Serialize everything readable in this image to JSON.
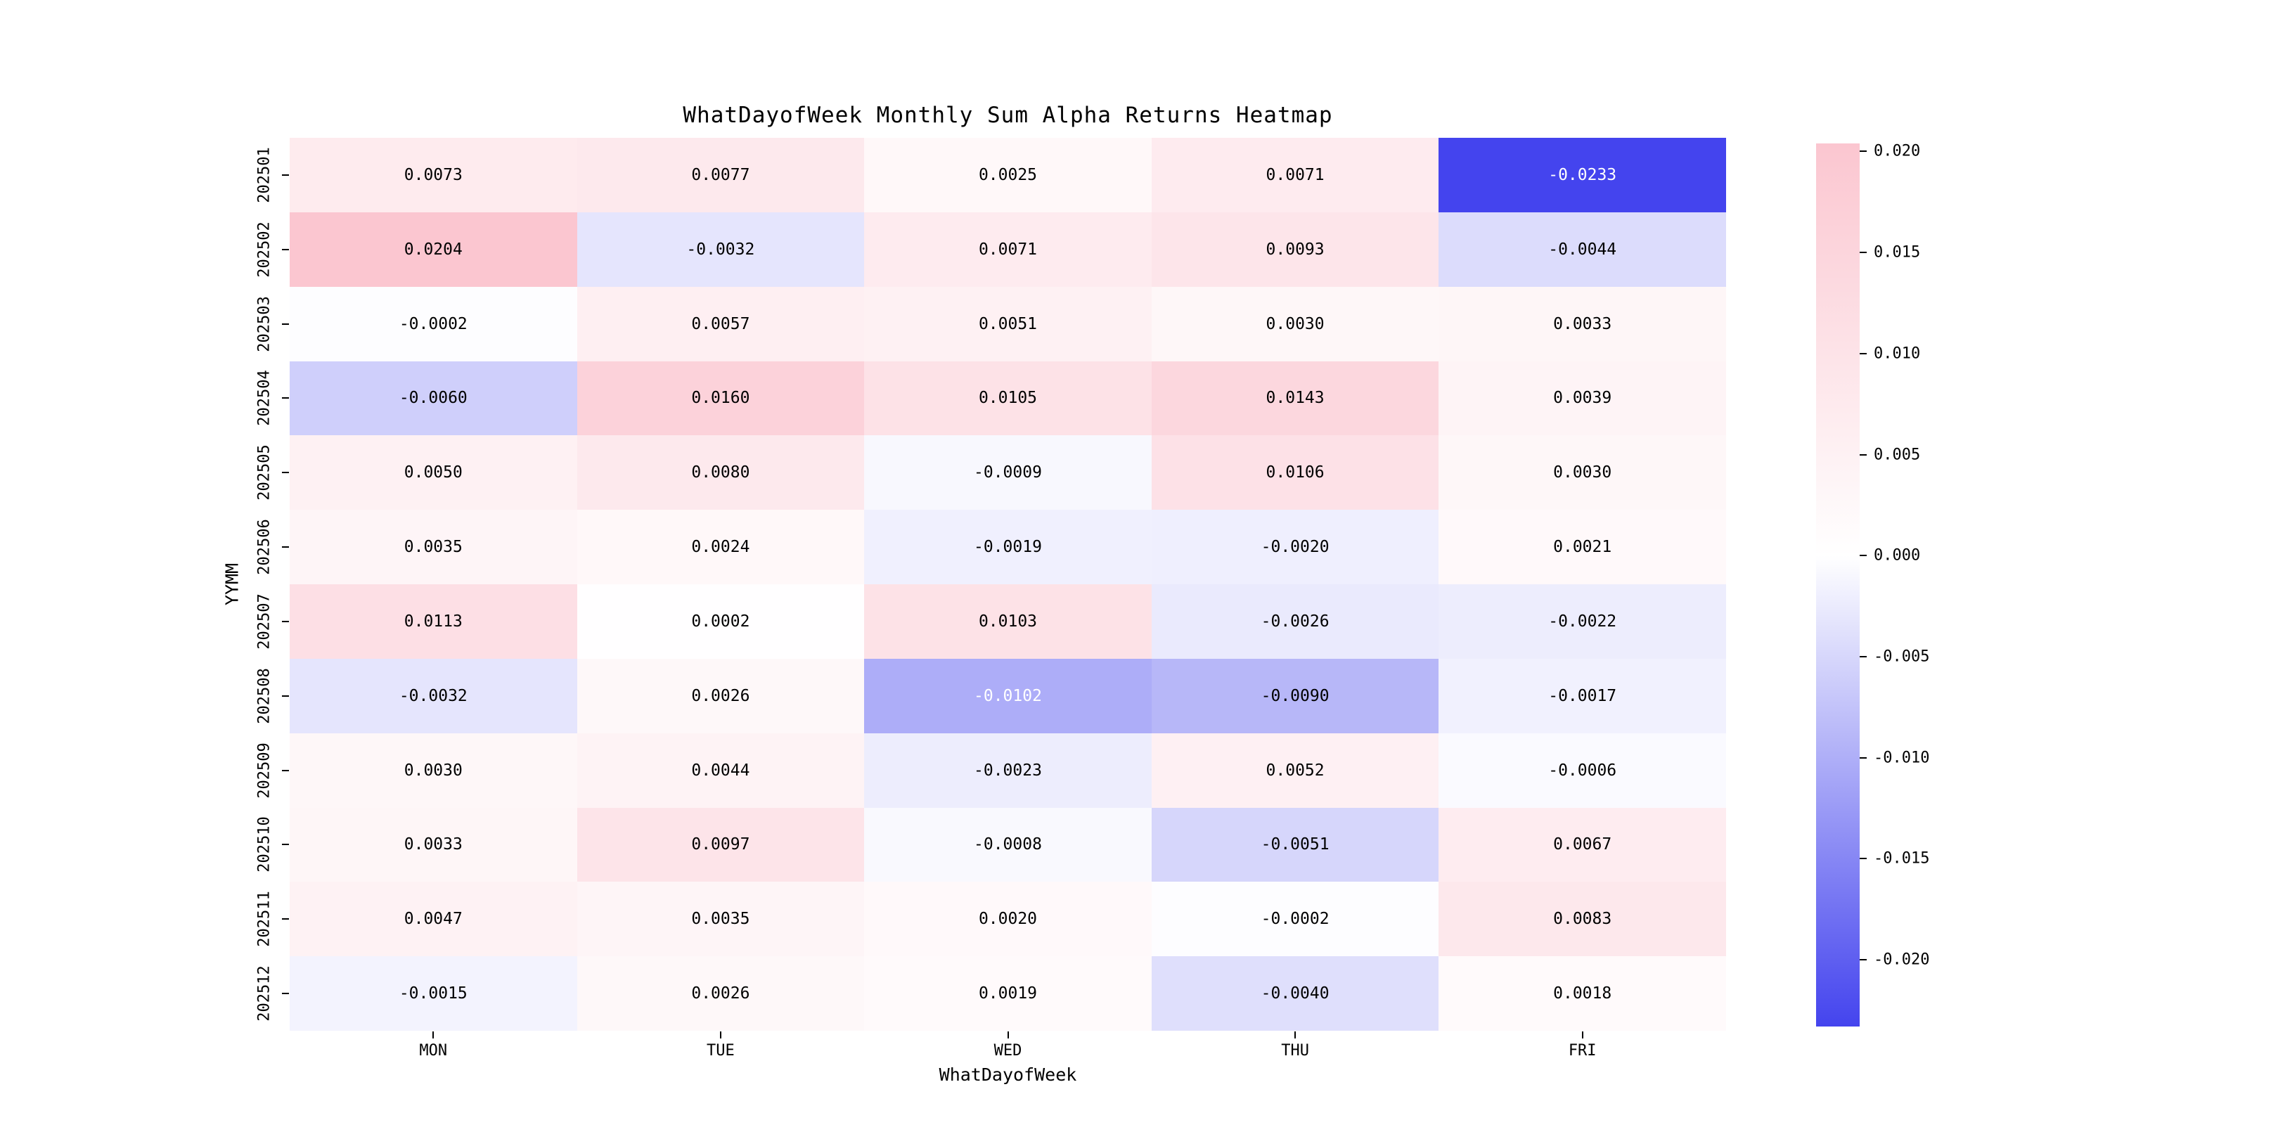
{
  "title": "WhatDayofWeek Monthly Sum Alpha Returns Heatmap",
  "chart_data": {
    "type": "heatmap",
    "title": "WhatDayofWeek Monthly Sum Alpha Returns Heatmap",
    "xlabel": "WhatDayofWeek",
    "ylabel": "YYMM",
    "x_tick_labels": [
      "MON",
      "TUE",
      "WED",
      "THU",
      "FRI"
    ],
    "y_tick_labels": [
      "202501",
      "202502",
      "202503",
      "202504",
      "202505",
      "202506",
      "202507",
      "202508",
      "202509",
      "202510",
      "202511",
      "202512"
    ],
    "values": [
      [
        0.0073,
        0.0077,
        0.0025,
        0.0071,
        -0.0233
      ],
      [
        0.0204,
        -0.0032,
        0.0071,
        0.0093,
        -0.0044
      ],
      [
        -0.0002,
        0.0057,
        0.0051,
        0.003,
        0.0033
      ],
      [
        -0.006,
        0.016,
        0.0105,
        0.0143,
        0.0039
      ],
      [
        0.005,
        0.008,
        -0.0009,
        0.0106,
        0.003
      ],
      [
        0.0035,
        0.0024,
        -0.0019,
        -0.002,
        0.0021
      ],
      [
        0.0113,
        0.0002,
        0.0103,
        -0.0026,
        -0.0022
      ],
      [
        -0.0032,
        0.0026,
        -0.0102,
        -0.009,
        -0.0017
      ],
      [
        0.003,
        0.0044,
        -0.0023,
        0.0052,
        -0.0006
      ],
      [
        0.0033,
        0.0097,
        -0.0008,
        -0.0051,
        0.0067
      ],
      [
        0.0047,
        0.0035,
        0.002,
        -0.0002,
        0.0083
      ],
      [
        -0.0015,
        0.0026,
        0.0019,
        -0.004,
        0.0018
      ]
    ],
    "value_format": ".4f",
    "vmin": -0.0233,
    "vmax": 0.0204,
    "colorbar_tick_labels": [
      "0.020",
      "0.015",
      "0.010",
      "0.005",
      "0.000",
      "-0.005",
      "-0.010",
      "-0.015",
      "-0.020"
    ],
    "colors": {
      "positive_max": "#fbc6d0",
      "zero": "#ffffff",
      "negative_max": "#4444ee",
      "annotation_dark": "#000000",
      "annotation_light": "#ffffff"
    },
    "grid": false,
    "legend": "colorbar-right"
  }
}
